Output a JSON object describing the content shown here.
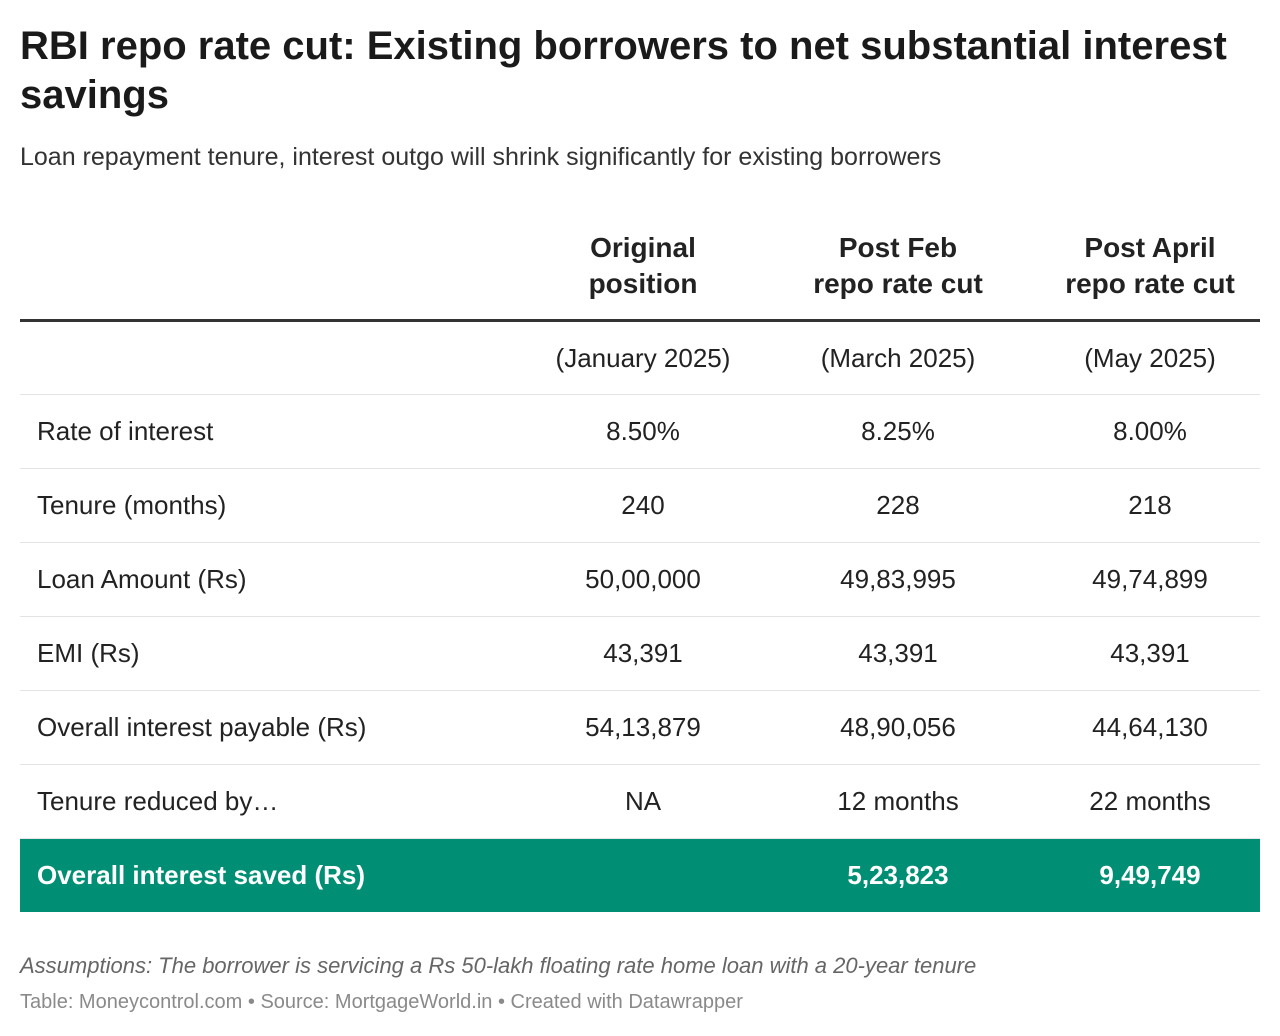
{
  "chart_data": {
    "type": "table",
    "title": "RBI repo rate cut: Existing borrowers to net substantial interest savings",
    "subtitle": "Loan repayment tenure, interest outgo will shrink significantly for existing borrowers",
    "columns": [
      "",
      "Original position",
      "Post Feb repo rate cut",
      "Post April repo rate cut"
    ],
    "rows": [
      [
        "",
        "(January 2025)",
        "(March 2025)",
        "(May 2025)"
      ],
      [
        "Rate of interest",
        "8.50%",
        "8.25%",
        "8.00%"
      ],
      [
        "Tenure (months)",
        "240",
        "228",
        "218"
      ],
      [
        "Loan Amount (Rs)",
        "50,00,000",
        "49,83,995",
        "49,74,899"
      ],
      [
        "EMI (Rs)",
        "43,391",
        "43,391",
        "43,391"
      ],
      [
        "Overall interest payable (Rs)",
        "54,13,879",
        "48,90,056",
        "44,64,130"
      ],
      [
        "Tenure reduced by…",
        "NA",
        "12 months",
        "22 months"
      ],
      [
        "Overall interest saved (Rs)",
        "",
        "5,23,823",
        "9,49,749"
      ]
    ],
    "highlight_row": 7,
    "highlight_color": "#008f74",
    "notes": "Assumptions: The borrower is servicing a Rs 50-lakh floating rate home loan with a 20-year tenure",
    "credits": "Table: Moneycontrol.com • Source: MortgageWorld.in • Created with Datawrapper"
  }
}
